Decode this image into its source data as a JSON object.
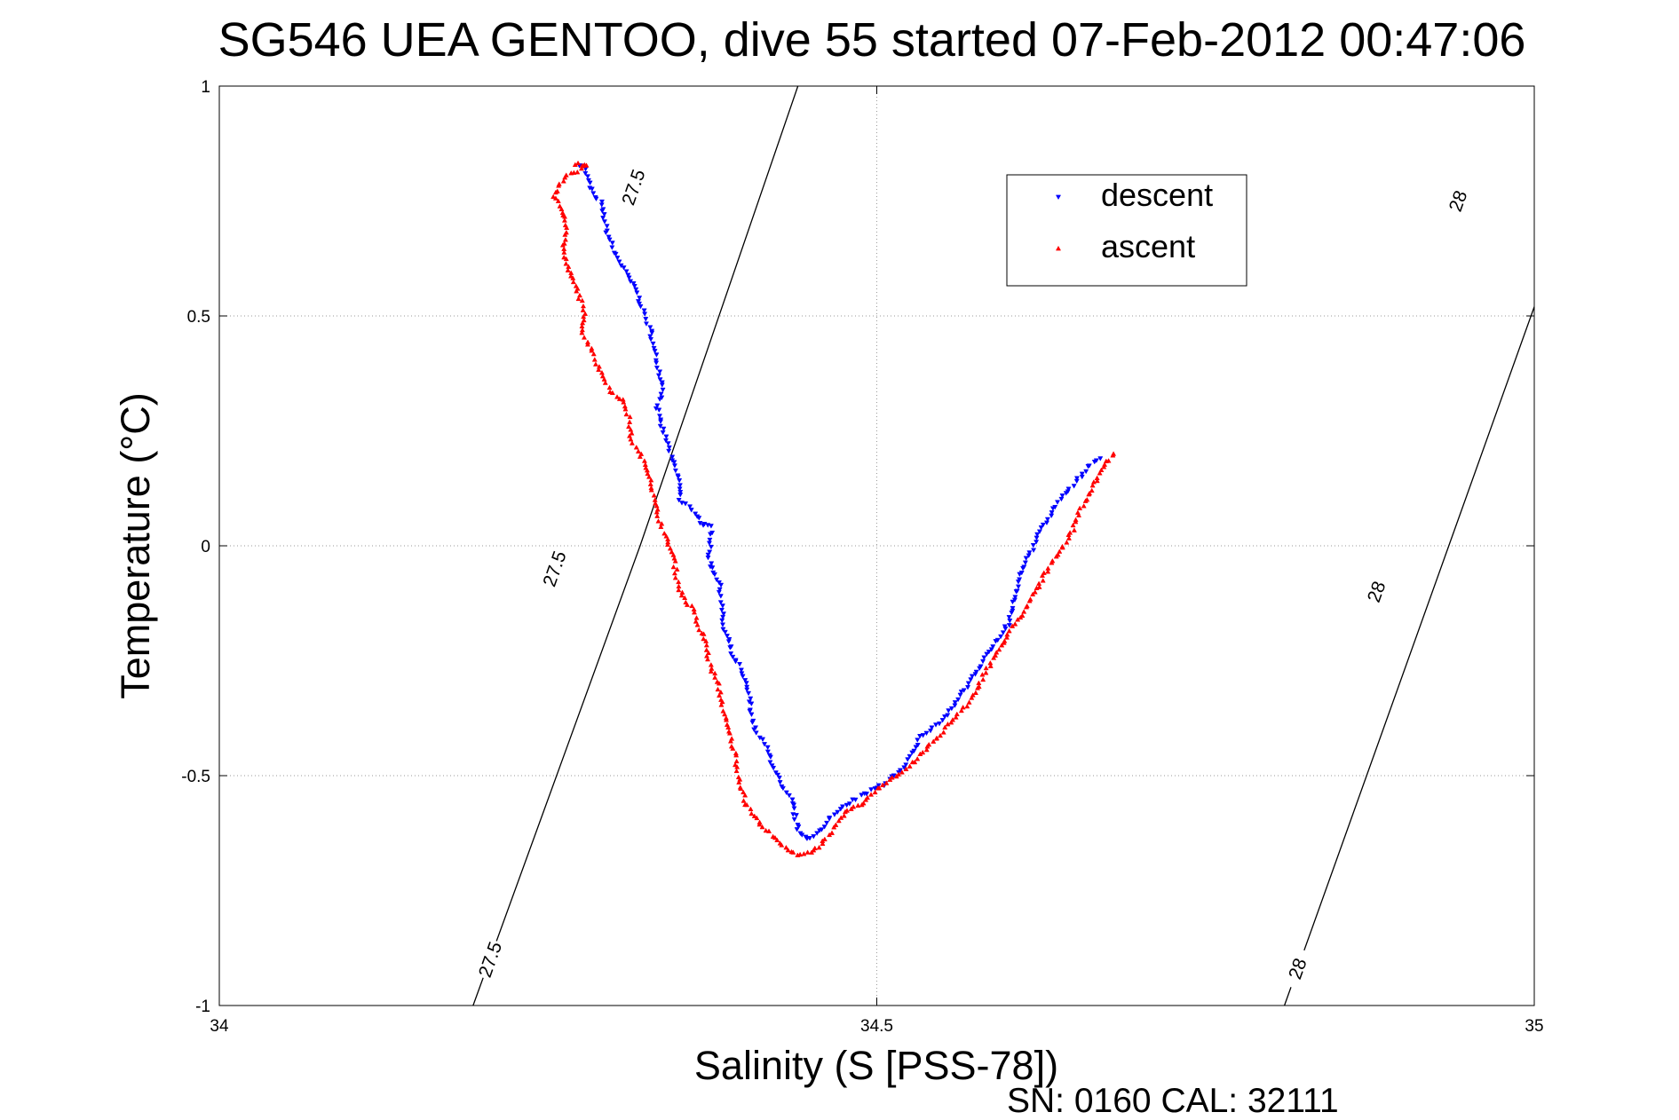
{
  "chart_data": {
    "type": "scatter",
    "title": "SG546 UEA GENTOO, dive 55 started 07-Feb-2012 00:47:06",
    "xlabel": "Salinity (S [PSS-78])",
    "ylabel": "Temperature (°C)",
    "xlim": [
      34,
      35
    ],
    "ylim": [
      -1,
      1
    ],
    "x_ticks": [
      "34",
      "34.5",
      "35"
    ],
    "y_ticks": [
      "1",
      "0.5",
      "0",
      "-0.5",
      "-1"
    ],
    "grid": true,
    "legend_placement": "top-center-right",
    "footer": "SN: 0160  CAL: 32111",
    "isopycnals": [
      {
        "value": 27.5,
        "points": [
          [
            34.193,
            -1.0
          ],
          [
            34.32,
            0.0
          ],
          [
            34.44,
            1.0
          ]
        ],
        "labels": [
          {
            "text": "27.5",
            "at": [
              34.206,
              -0.9
            ]
          },
          {
            "text": "27.5",
            "at": [
              34.255,
              -0.05
            ]
          },
          {
            "text": "27.5",
            "at": [
              34.315,
              0.78
            ]
          }
        ]
      },
      {
        "value": 28,
        "points": [
          [
            34.81,
            -1.0
          ],
          [
            34.935,
            0.0
          ],
          [
            35.06,
            1.0
          ]
        ],
        "labels": [
          {
            "text": "28",
            "at": [
              34.82,
              -0.92
            ]
          },
          {
            "text": "28",
            "at": [
              34.88,
              -0.1
            ]
          },
          {
            "text": "28",
            "at": [
              34.942,
              0.75
            ]
          }
        ]
      }
    ],
    "series": [
      {
        "name": "descent",
        "color": "#0000ff",
        "marker": "triangle-down",
        "keypoints": [
          [
            34.275,
            0.83
          ],
          [
            34.278,
            0.82
          ],
          [
            34.282,
            0.78
          ],
          [
            34.285,
            0.76
          ],
          [
            34.29,
            0.75
          ],
          [
            34.292,
            0.72
          ],
          [
            34.295,
            0.68
          ],
          [
            34.3,
            0.64
          ],
          [
            34.306,
            0.61
          ],
          [
            34.31,
            0.59
          ],
          [
            34.318,
            0.55
          ],
          [
            34.322,
            0.51
          ],
          [
            34.328,
            0.47
          ],
          [
            34.33,
            0.43
          ],
          [
            34.334,
            0.39
          ],
          [
            34.338,
            0.34
          ],
          [
            34.333,
            0.3
          ],
          [
            34.335,
            0.27
          ],
          [
            34.34,
            0.23
          ],
          [
            34.345,
            0.18
          ],
          [
            34.35,
            0.14
          ],
          [
            34.35,
            0.1
          ],
          [
            34.36,
            0.08
          ],
          [
            34.365,
            0.05
          ],
          [
            34.375,
            0.04
          ],
          [
            34.372,
            -0.02
          ],
          [
            34.375,
            -0.05
          ],
          [
            34.38,
            -0.08
          ],
          [
            34.382,
            -0.12
          ],
          [
            34.383,
            -0.18
          ],
          [
            34.387,
            -0.2
          ],
          [
            34.39,
            -0.24
          ],
          [
            34.395,
            -0.26
          ],
          [
            34.4,
            -0.3
          ],
          [
            34.403,
            -0.33
          ],
          [
            34.405,
            -0.37
          ],
          [
            34.408,
            -0.41
          ],
          [
            34.415,
            -0.43
          ],
          [
            34.42,
            -0.47
          ],
          [
            34.428,
            -0.53
          ],
          [
            34.435,
            -0.55
          ],
          [
            34.44,
            -0.62
          ],
          [
            34.448,
            -0.64
          ],
          [
            34.456,
            -0.62
          ],
          [
            34.465,
            -0.59
          ],
          [
            34.475,
            -0.57
          ],
          [
            34.49,
            -0.54
          ],
          [
            34.505,
            -0.52
          ],
          [
            34.52,
            -0.48
          ],
          [
            34.535,
            -0.41
          ],
          [
            34.55,
            -0.38
          ],
          [
            34.56,
            -0.34
          ],
          [
            34.57,
            -0.3
          ],
          [
            34.58,
            -0.26
          ],
          [
            34.585,
            -0.23
          ],
          [
            34.6,
            -0.17
          ],
          [
            34.605,
            -0.11
          ],
          [
            34.61,
            -0.05
          ],
          [
            34.62,
            0.0
          ],
          [
            34.625,
            0.04
          ],
          [
            34.635,
            0.08
          ],
          [
            34.645,
            0.12
          ],
          [
            34.655,
            0.15
          ],
          [
            34.66,
            0.17
          ],
          [
            34.67,
            0.19
          ]
        ]
      },
      {
        "name": "ascent",
        "color": "#ff0000",
        "marker": "triangle-up",
        "keypoints": [
          [
            34.27,
            0.83
          ],
          [
            34.28,
            0.83
          ],
          [
            34.275,
            0.82
          ],
          [
            34.262,
            0.8
          ],
          [
            34.258,
            0.78
          ],
          [
            34.255,
            0.76
          ],
          [
            34.258,
            0.74
          ],
          [
            34.262,
            0.72
          ],
          [
            34.265,
            0.69
          ],
          [
            34.262,
            0.66
          ],
          [
            34.262,
            0.63
          ],
          [
            34.265,
            0.61
          ],
          [
            34.268,
            0.58
          ],
          [
            34.272,
            0.56
          ],
          [
            34.275,
            0.53
          ],
          [
            34.278,
            0.5
          ],
          [
            34.276,
            0.46
          ],
          [
            34.283,
            0.43
          ],
          [
            34.288,
            0.39
          ],
          [
            34.293,
            0.36
          ],
          [
            34.3,
            0.33
          ],
          [
            34.308,
            0.31
          ],
          [
            34.312,
            0.27
          ],
          [
            34.313,
            0.23
          ],
          [
            34.32,
            0.2
          ],
          [
            34.328,
            0.15
          ],
          [
            34.33,
            0.11
          ],
          [
            34.333,
            0.07
          ],
          [
            34.338,
            0.03
          ],
          [
            34.345,
            -0.02
          ],
          [
            34.348,
            -0.07
          ],
          [
            34.352,
            -0.11
          ],
          [
            34.36,
            -0.14
          ],
          [
            34.365,
            -0.18
          ],
          [
            34.37,
            -0.21
          ],
          [
            34.372,
            -0.25
          ],
          [
            34.38,
            -0.31
          ],
          [
            34.385,
            -0.38
          ],
          [
            34.388,
            -0.41
          ],
          [
            34.392,
            -0.45
          ],
          [
            34.395,
            -0.5
          ],
          [
            34.4,
            -0.56
          ],
          [
            34.41,
            -0.6
          ],
          [
            34.42,
            -0.63
          ],
          [
            34.432,
            -0.66
          ],
          [
            34.44,
            -0.67
          ],
          [
            34.45,
            -0.67
          ],
          [
            34.458,
            -0.65
          ],
          [
            34.47,
            -0.6
          ],
          [
            34.48,
            -0.57
          ],
          [
            34.49,
            -0.56
          ],
          [
            34.5,
            -0.53
          ],
          [
            34.515,
            -0.5
          ],
          [
            34.525,
            -0.48
          ],
          [
            34.535,
            -0.45
          ],
          [
            34.548,
            -0.41
          ],
          [
            34.56,
            -0.37
          ],
          [
            34.57,
            -0.34
          ],
          [
            34.58,
            -0.29
          ],
          [
            34.59,
            -0.24
          ],
          [
            34.6,
            -0.19
          ],
          [
            34.61,
            -0.15
          ],
          [
            34.62,
            -0.1
          ],
          [
            34.628,
            -0.06
          ],
          [
            34.638,
            -0.02
          ],
          [
            34.648,
            0.03
          ],
          [
            34.655,
            0.08
          ],
          [
            34.665,
            0.13
          ],
          [
            34.672,
            0.17
          ],
          [
            34.68,
            0.2
          ]
        ]
      }
    ]
  }
}
